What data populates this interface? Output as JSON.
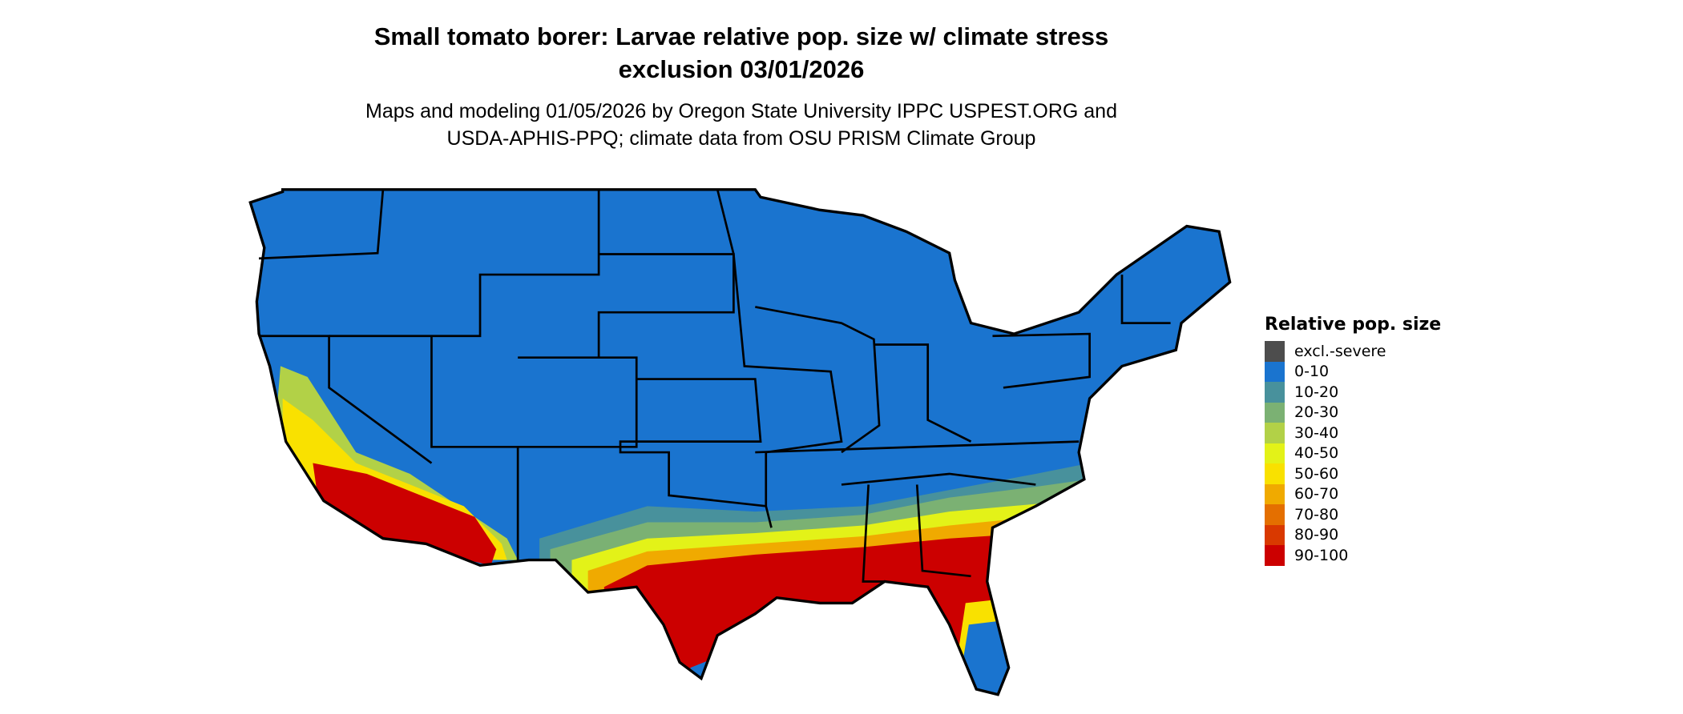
{
  "title_line1": "Small tomato borer: Larvae relative pop. size w/ climate stress",
  "title_line2": "exclusion 03/01/2026",
  "subtitle_line1": "Maps and modeling 01/05/2026 by Oregon State University IPPC USPEST.ORG and",
  "subtitle_line2": "USDA-APHIS-PPQ; climate data from OSU PRISM Climate Group",
  "legend": {
    "title": "Relative pop. size",
    "items": [
      {
        "label": "excl.-severe",
        "color": "#4d4d4d"
      },
      {
        "label": "0-10",
        "color": "#1a74cf"
      },
      {
        "label": "10-20",
        "color": "#48919c"
      },
      {
        "label": "20-30",
        "color": "#7bb173"
      },
      {
        "label": "30-40",
        "color": "#b2d147"
      },
      {
        "label": "40-50",
        "color": "#e3f218"
      },
      {
        "label": "50-60",
        "color": "#f9e100"
      },
      {
        "label": "60-70",
        "color": "#f0aa00"
      },
      {
        "label": "70-80",
        "color": "#e46f00"
      },
      {
        "label": "80-90",
        "color": "#d93900"
      },
      {
        "label": "90-100",
        "color": "#cc0000"
      }
    ]
  }
}
